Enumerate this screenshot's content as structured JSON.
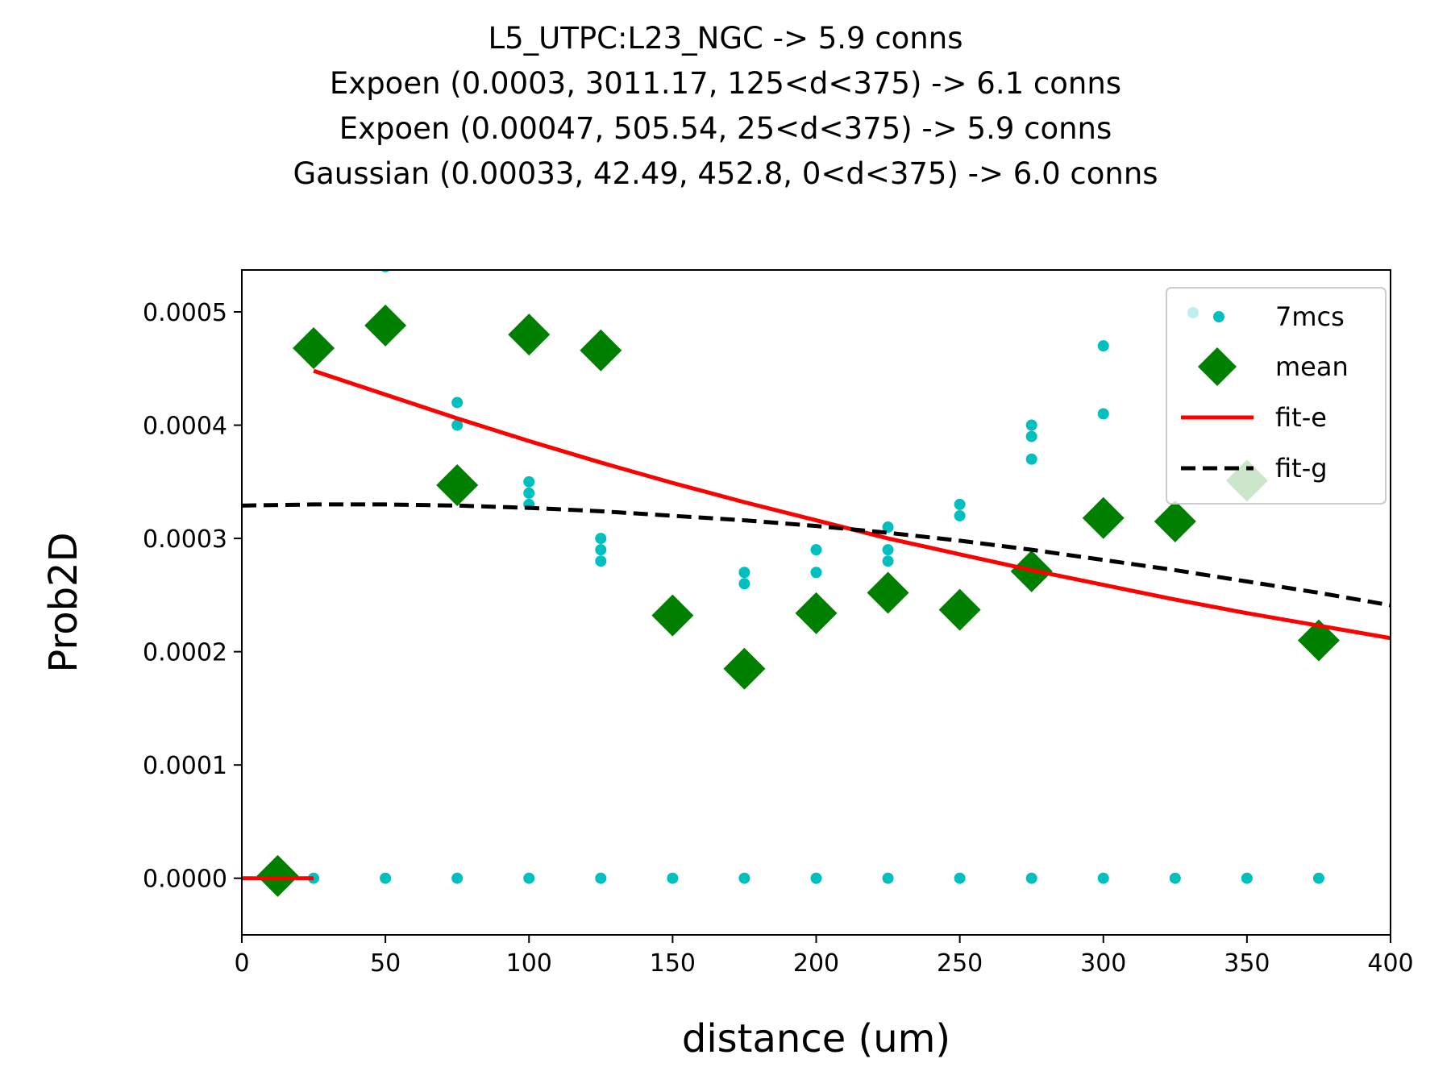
{
  "chart_data": {
    "type": "scatter",
    "title_lines": [
      "L5_UTPC:L23_NGC -> 5.9 conns",
      "Expoen (0.0003, 3011.17, 125<d<375) -> 6.1 conns",
      "Expoen (0.00047, 505.54, 25<d<375) -> 5.9 conns",
      "Gaussian (0.00033, 42.49, 452.8, 0<d<375) -> 6.0 conns"
    ],
    "xlabel": "distance (um)",
    "ylabel": "Prob2D",
    "xlim": [
      0,
      400
    ],
    "ylim": [
      -5e-05,
      0.000537
    ],
    "xticks": [
      0,
      50,
      100,
      150,
      200,
      250,
      300,
      350,
      400
    ],
    "xtick_labels": [
      "0",
      "50",
      "100",
      "150",
      "200",
      "250",
      "300",
      "350",
      "400"
    ],
    "yticks": [
      0,
      0.0001,
      0.0002,
      0.0003,
      0.0004,
      0.0005
    ],
    "ytick_labels": [
      "0.0000",
      "0.0001",
      "0.0002",
      "0.0003",
      "0.0004",
      "0.0005"
    ],
    "grid": false,
    "legend_position": "top-right",
    "series": [
      {
        "name": "7mcs",
        "kind": "points",
        "color": "#00bfbf",
        "points": [
          [
            25,
            0
          ],
          [
            50,
            0.00054
          ],
          [
            50,
            0
          ],
          [
            75,
            0.00042
          ],
          [
            75,
            0.0004
          ],
          [
            75,
            0
          ],
          [
            100,
            0.00035
          ],
          [
            100,
            0.00034
          ],
          [
            100,
            0.00033
          ],
          [
            100,
            0
          ],
          [
            125,
            0.0003
          ],
          [
            125,
            0.00029
          ],
          [
            125,
            0.00028
          ],
          [
            125,
            0
          ],
          [
            150,
            0
          ],
          [
            175,
            0.00027
          ],
          [
            175,
            0.00026
          ],
          [
            175,
            0
          ],
          [
            200,
            0.00029
          ],
          [
            200,
            0.00027
          ],
          [
            200,
            0
          ],
          [
            225,
            0.00031
          ],
          [
            225,
            0.00029
          ],
          [
            225,
            0.00028
          ],
          [
            225,
            0
          ],
          [
            250,
            0.00033
          ],
          [
            250,
            0.00032
          ],
          [
            250,
            0
          ],
          [
            275,
            0.0004
          ],
          [
            275,
            0.00039
          ],
          [
            275,
            0.00037
          ],
          [
            275,
            0
          ],
          [
            300,
            0.00047
          ],
          [
            300,
            0.00041
          ],
          [
            300,
            0
          ],
          [
            325,
            0
          ],
          [
            350,
            0
          ],
          [
            375,
            0
          ]
        ]
      },
      {
        "name": "mean",
        "kind": "diamonds",
        "color": "#008000",
        "points": [
          [
            12.5,
            2e-06
          ],
          [
            25,
            0.000468
          ],
          [
            50,
            0.000488
          ],
          [
            75,
            0.000347
          ],
          [
            100,
            0.00048
          ],
          [
            125,
            0.000466
          ],
          [
            150,
            0.000232
          ],
          [
            175,
            0.000185
          ],
          [
            200,
            0.000234
          ],
          [
            225,
            0.000252
          ],
          [
            250,
            0.000237
          ],
          [
            275,
            0.000271
          ],
          [
            300,
            0.000318
          ],
          [
            325,
            0.000315
          ],
          [
            350,
            0.000351
          ],
          [
            375,
            0.00021
          ]
        ]
      },
      {
        "name": "fit-e",
        "kind": "line",
        "color": "#ff0000",
        "points": [
          [
            0,
            0
          ],
          [
            25,
            0
          ],
          [
            25,
            0.000448
          ],
          [
            50,
            0.000427
          ],
          [
            75,
            0.000406
          ],
          [
            100,
            0.000386
          ],
          [
            125,
            0.000367
          ],
          [
            150,
            0.000349
          ],
          [
            175,
            0.000332
          ],
          [
            200,
            0.000316
          ],
          [
            225,
            0.0003
          ],
          [
            250,
            0.000286
          ],
          [
            275,
            0.000272
          ],
          [
            300,
            0.000259
          ],
          [
            325,
            0.000246
          ],
          [
            350,
            0.000234
          ],
          [
            375,
            0.000223
          ],
          [
            400,
            0.000212
          ]
        ]
      },
      {
        "name": "fit-g",
        "kind": "dashed-line",
        "color": "#000000",
        "points": [
          [
            0,
            0.000329
          ],
          [
            25,
            0.00033
          ],
          [
            50,
            0.00033
          ],
          [
            75,
            0.000329
          ],
          [
            100,
            0.000327
          ],
          [
            125,
            0.000324
          ],
          [
            150,
            0.00032
          ],
          [
            175,
            0.000316
          ],
          [
            200,
            0.000311
          ],
          [
            225,
            0.000305
          ],
          [
            250,
            0.000298
          ],
          [
            275,
            0.00029
          ],
          [
            300,
            0.000281
          ],
          [
            325,
            0.000272
          ],
          [
            350,
            0.000262
          ],
          [
            375,
            0.000252
          ],
          [
            400,
            0.000241
          ]
        ]
      }
    ]
  }
}
